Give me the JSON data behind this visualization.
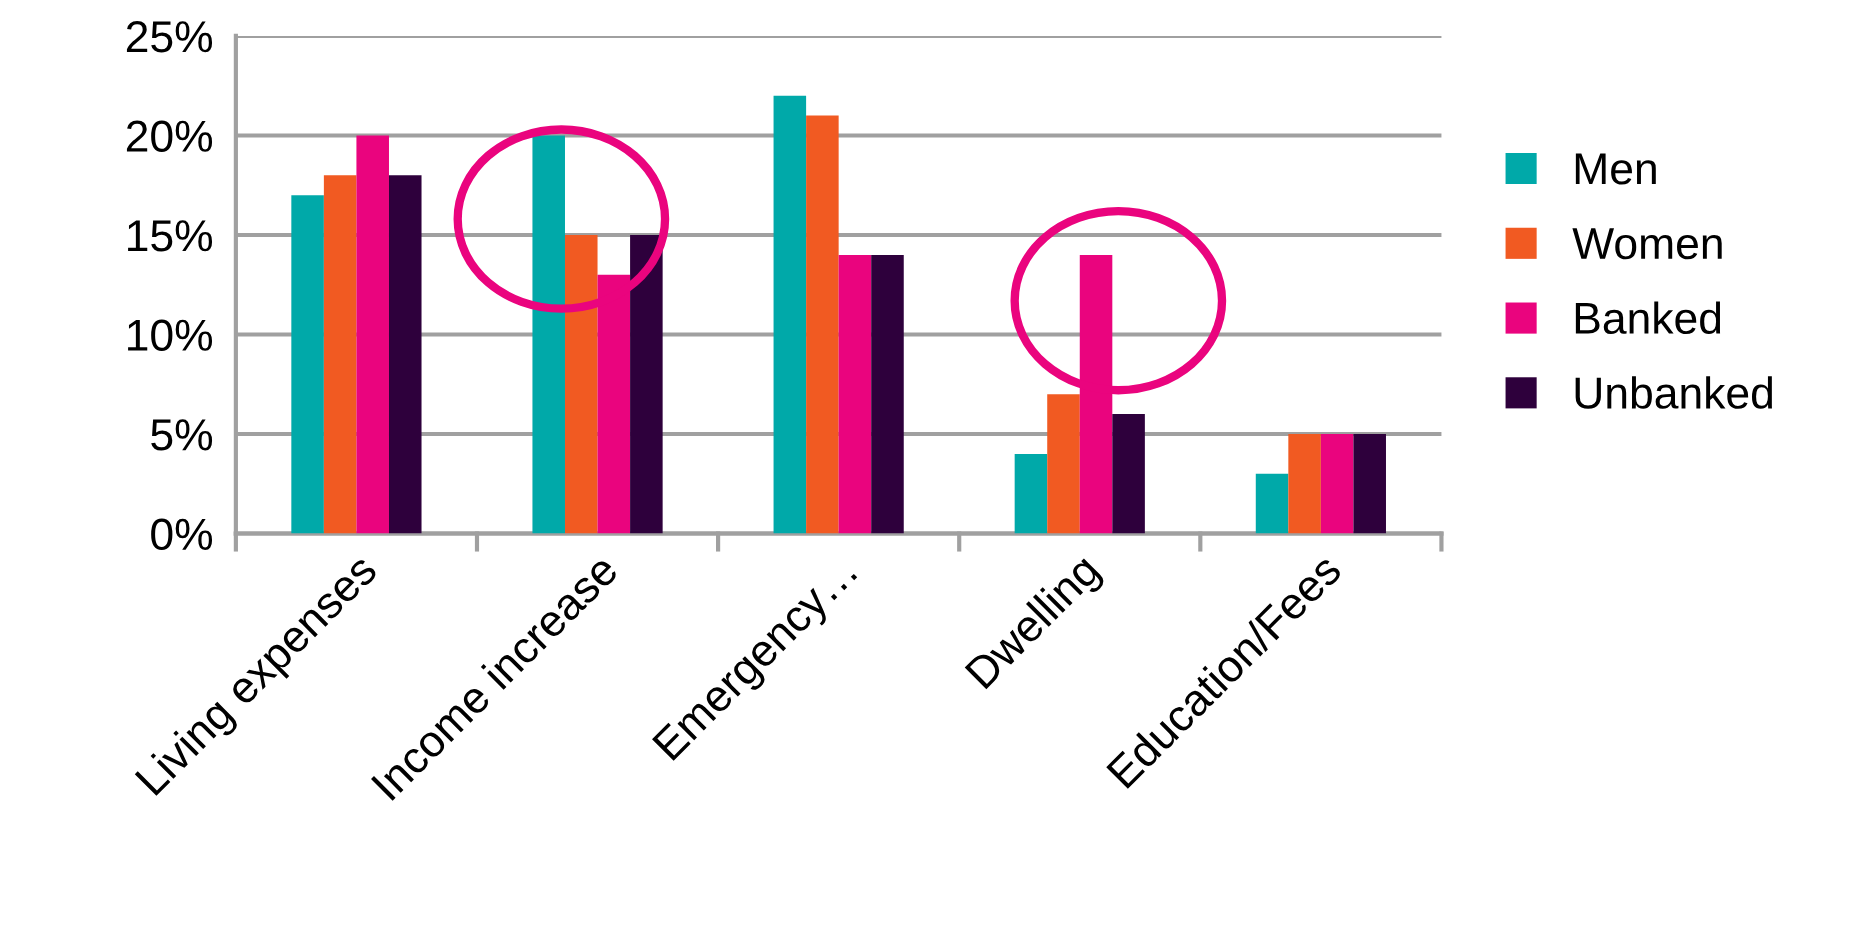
{
  "chart_data": {
    "type": "bar",
    "categories": [
      "Living expenses",
      "Income increase",
      "Emergency…",
      "Dwelling",
      "Education/Fees"
    ],
    "series": [
      {
        "name": "Men",
        "color": "#00a9a9",
        "values": [
          17,
          20,
          22,
          4,
          3
        ]
      },
      {
        "name": "Women",
        "color": "#f15a22",
        "values": [
          18,
          15,
          21,
          7,
          5
        ]
      },
      {
        "name": "Banked",
        "color": "#ea047e",
        "values": [
          20,
          13,
          14,
          14,
          5
        ]
      },
      {
        "name": "Unbanked",
        "color": "#2e003c",
        "values": [
          18,
          15,
          14,
          6,
          5
        ]
      }
    ],
    "ylim": [
      0,
      25
    ],
    "yticks": [
      {
        "value": 0,
        "label": "0%"
      },
      {
        "value": 5,
        "label": "5%"
      },
      {
        "value": 10,
        "label": "10%"
      },
      {
        "value": 15,
        "label": "15%"
      },
      {
        "value": 20,
        "label": "20%"
      },
      {
        "value": 25,
        "label": "25%"
      }
    ],
    "grid": "y",
    "legend": "right"
  }
}
